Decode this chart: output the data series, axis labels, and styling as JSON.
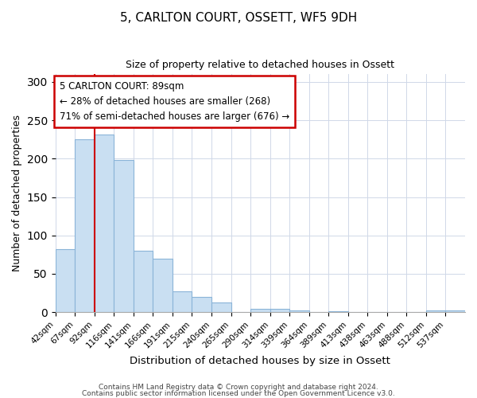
{
  "title": "5, CARLTON COURT, OSSETT, WF5 9DH",
  "subtitle": "Size of property relative to detached houses in Ossett",
  "bar_labels": [
    "42sqm",
    "67sqm",
    "92sqm",
    "116sqm",
    "141sqm",
    "166sqm",
    "191sqm",
    "215sqm",
    "240sqm",
    "265sqm",
    "290sqm",
    "314sqm",
    "339sqm",
    "364sqm",
    "389sqm",
    "413sqm",
    "438sqm",
    "463sqm",
    "488sqm",
    "512sqm",
    "537sqm"
  ],
  "bar_values": [
    82,
    225,
    232,
    198,
    80,
    70,
    27,
    20,
    13,
    0,
    4,
    4,
    2,
    0,
    1,
    0,
    0,
    0,
    0,
    2,
    2
  ],
  "bar_color": "#c9dff2",
  "bar_edge_color": "#8ab4d8",
  "xlabel": "Distribution of detached houses by size in Ossett",
  "ylabel": "Number of detached properties",
  "ylim": [
    0,
    310
  ],
  "yticks": [
    0,
    50,
    100,
    150,
    200,
    250,
    300
  ],
  "annotation_title": "5 CARLTON COURT: 89sqm",
  "annotation_line1": "← 28% of detached houses are smaller (268)",
  "annotation_line2": "71% of semi-detached houses are larger (676) →",
  "annotation_box_color": "#ffffff",
  "annotation_box_edge_color": "#cc0000",
  "vline_color": "#cc0000",
  "bin_width": 25,
  "vline_pos": 2,
  "footer1": "Contains HM Land Registry data © Crown copyright and database right 2024.",
  "footer2": "Contains public sector information licensed under the Open Government Licence v3.0."
}
